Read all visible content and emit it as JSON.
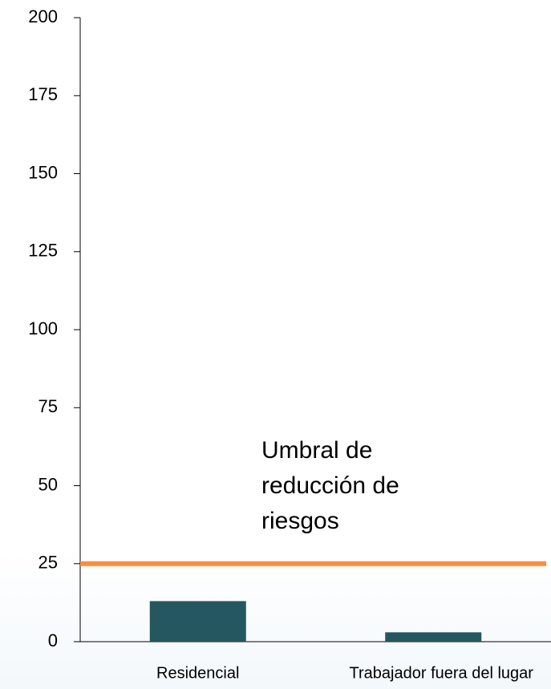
{
  "chart_data": {
    "type": "bar",
    "categories": [
      "Residencial",
      "Trabajador fuera del lugar"
    ],
    "values": [
      13,
      3
    ],
    "color": "#24575f",
    "ylim": [
      0,
      200
    ],
    "yticks": [
      0,
      25,
      50,
      75,
      100,
      125,
      150,
      175,
      200
    ],
    "threshold": {
      "value": 25,
      "label": "Umbral de reducción de riesgos",
      "color": "#ff8c3a"
    }
  }
}
